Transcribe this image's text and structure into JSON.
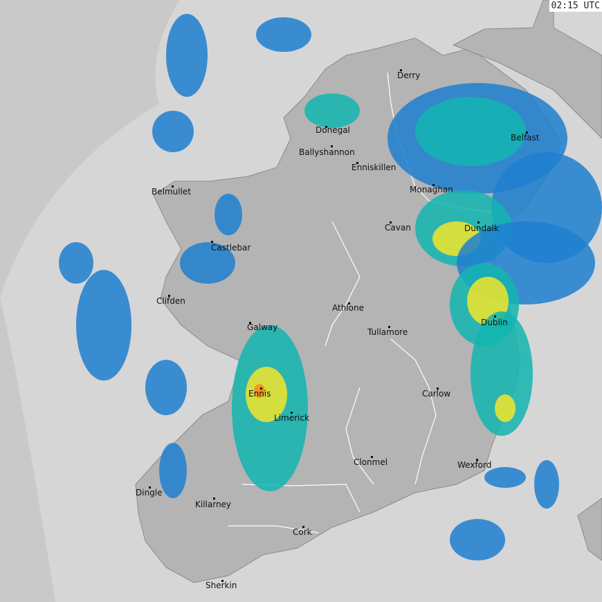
{
  "timestamp": "02:15 UTC",
  "colors": {
    "sea": "#d6d6d6",
    "outside_range": "#c9c9c9",
    "land": "#b4b4b4",
    "light_rain": "#1f7fd0",
    "moderate_rain": "#12b5b0",
    "heavy_rain": "#7fd84a",
    "very_heavy_rain": "#f2e52a",
    "intense_rain": "#f28a1a"
  },
  "cities": [
    {
      "name": "Derry"
    },
    {
      "name": "Donegal"
    },
    {
      "name": "Ballyshannon"
    },
    {
      "name": "Enniskillen"
    },
    {
      "name": "Belfast"
    },
    {
      "name": "Monaghan"
    },
    {
      "name": "Belmullet"
    },
    {
      "name": "Cavan"
    },
    {
      "name": "Dundalk"
    },
    {
      "name": "Castlebar"
    },
    {
      "name": "Clifden"
    },
    {
      "name": "Athlone"
    },
    {
      "name": "Galway"
    },
    {
      "name": "Tullamore"
    },
    {
      "name": "Dublin"
    },
    {
      "name": "Ennis"
    },
    {
      "name": "Carlow"
    },
    {
      "name": "Limerick"
    },
    {
      "name": "Clonmel"
    },
    {
      "name": "Wexford"
    },
    {
      "name": "Dingle"
    },
    {
      "name": "Killarney"
    },
    {
      "name": "Cork"
    },
    {
      "name": "Sherkin"
    }
  ]
}
